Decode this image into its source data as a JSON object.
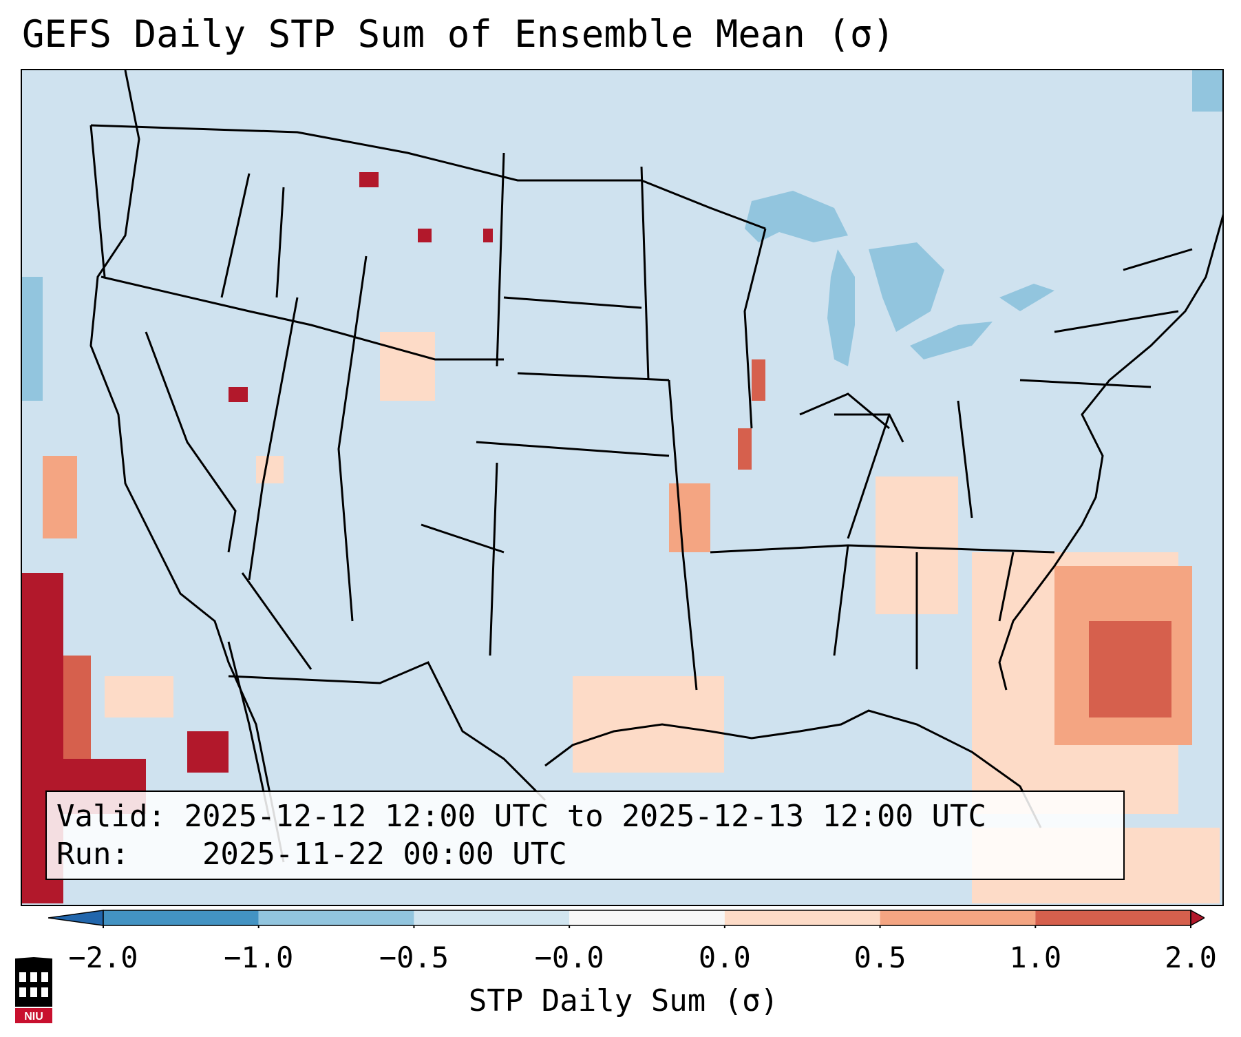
{
  "title": "GEFS Daily STP Sum of Ensemble Mean (σ)",
  "info": {
    "valid_label": "Valid:",
    "valid_value": "2025-12-12 12:00 UTC to 2025-12-13 12:00 UTC",
    "run_label": "Run:",
    "run_value": "2025-11-22 00:00 UTC"
  },
  "colorbar": {
    "label": "STP Daily Sum (σ)",
    "ticks": [
      "−2.0",
      "−1.0",
      "−0.5",
      "−0.0",
      "0.0",
      "0.5",
      "1.0",
      "2.0"
    ],
    "bins": [
      {
        "from": -2.0,
        "to": -1.0,
        "color": "#4393c3"
      },
      {
        "from": -1.0,
        "to": -0.5,
        "color": "#92c5de"
      },
      {
        "from": -0.5,
        "to": -0.0,
        "color": "#d1e5f0"
      },
      {
        "from": -0.0,
        "to": 0.0,
        "color": "#f7f7f7"
      },
      {
        "from": 0.0,
        "to": 0.5,
        "color": "#fddbc7"
      },
      {
        "from": 0.5,
        "to": 1.0,
        "color": "#f4a582"
      },
      {
        "from": 1.0,
        "to": 2.0,
        "color": "#d6604d"
      }
    ],
    "under_color": "#2166ac",
    "over_color": "#b2182b"
  },
  "colors": {
    "ocean_background": "#cfe2ef",
    "lakes": "#92c5de",
    "border": "#000000"
  },
  "logo": {
    "text": "NIU"
  }
}
